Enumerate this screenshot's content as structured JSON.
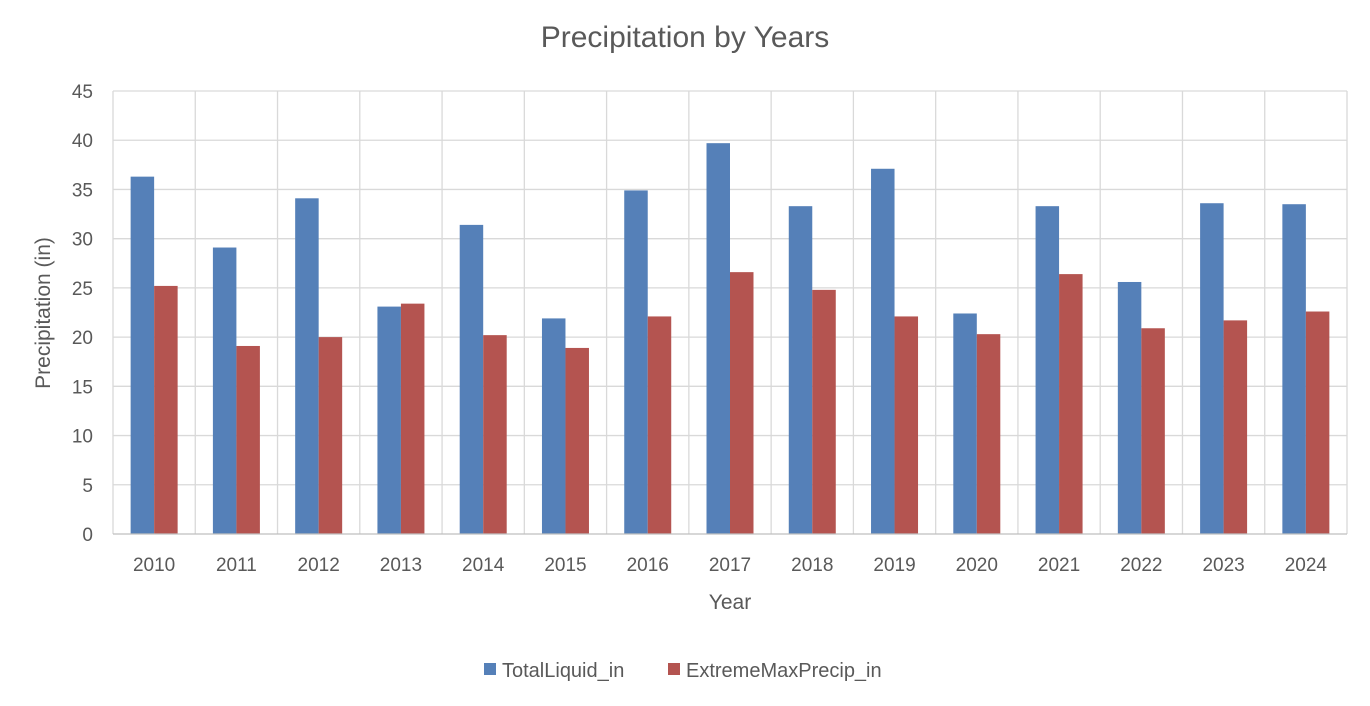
{
  "chart_data": {
    "type": "bar",
    "title": "Precipitation by Years",
    "xlabel": "Year",
    "ylabel": "Precipitation (in)",
    "categories": [
      "2010",
      "2011",
      "2012",
      "2013",
      "2014",
      "2015",
      "2016",
      "2017",
      "2018",
      "2019",
      "2020",
      "2021",
      "2022",
      "2023",
      "2024"
    ],
    "series": [
      {
        "name": "TotalLiquid_in",
        "color": "#5580b8",
        "values": [
          36.3,
          29.1,
          34.1,
          23.1,
          31.4,
          21.9,
          34.9,
          39.7,
          33.3,
          37.1,
          22.4,
          33.3,
          25.6,
          33.6,
          33.5
        ]
      },
      {
        "name": "ExtremeMaxPrecip_in",
        "color": "#b45450",
        "values": [
          25.2,
          19.1,
          20.0,
          23.4,
          20.2,
          18.9,
          22.1,
          26.6,
          24.8,
          22.1,
          20.3,
          26.4,
          20.9,
          21.7,
          22.6
        ]
      }
    ],
    "ylim": [
      0,
      45
    ],
    "yticks": [
      "0",
      "5",
      "10",
      "15",
      "20",
      "25",
      "30",
      "35",
      "40",
      "45"
    ],
    "grid": true,
    "legend_position": "bottom"
  }
}
